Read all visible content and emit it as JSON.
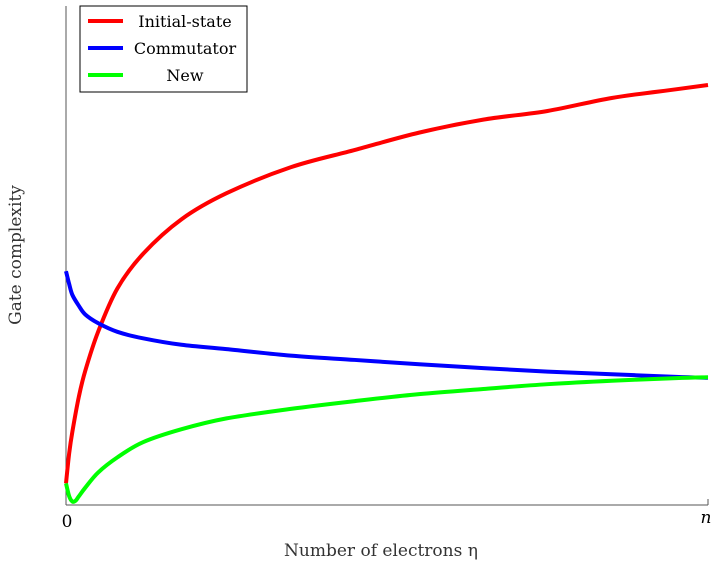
{
  "chart_data": {
    "type": "line",
    "xlabel": "Number of electrons η",
    "ylabel": "Gate complexity",
    "x_ticks": [
      "0",
      "n"
    ],
    "xlim": [
      0,
      1
    ],
    "ylim": [
      0,
      1
    ],
    "grid": false,
    "legend": {
      "position": "top-left"
    },
    "series": [
      {
        "name": "Initial-state",
        "color": "#ff0000",
        "x": [
          0.0,
          0.005,
          0.01,
          0.02,
          0.03,
          0.05,
          0.08,
          0.12,
          0.18,
          0.25,
          0.35,
          0.45,
          0.55,
          0.65,
          0.75,
          0.85,
          0.95,
          1.0
        ],
        "y": [
          0.05,
          0.12,
          0.17,
          0.25,
          0.31,
          0.4,
          0.5,
          0.58,
          0.66,
          0.72,
          0.78,
          0.82,
          0.86,
          0.89,
          0.91,
          0.94,
          0.96,
          0.97
        ]
      },
      {
        "name": "Commutator",
        "color": "#0000ff",
        "x": [
          0.0,
          0.005,
          0.01,
          0.02,
          0.03,
          0.05,
          0.08,
          0.12,
          0.18,
          0.25,
          0.35,
          0.45,
          0.55,
          0.65,
          0.75,
          0.85,
          0.95,
          1.0
        ],
        "y": [
          0.54,
          0.51,
          0.485,
          0.46,
          0.44,
          0.42,
          0.4,
          0.385,
          0.37,
          0.36,
          0.345,
          0.335,
          0.325,
          0.316,
          0.308,
          0.302,
          0.296,
          0.294
        ]
      },
      {
        "name": "New",
        "color": "#00ff00",
        "x": [
          0.0,
          0.005,
          0.01,
          0.015,
          0.02,
          0.03,
          0.05,
          0.08,
          0.12,
          0.18,
          0.25,
          0.35,
          0.45,
          0.55,
          0.65,
          0.75,
          0.85,
          0.95,
          1.0
        ],
        "y": [
          0.05,
          0.02,
          0.008,
          0.01,
          0.02,
          0.04,
          0.075,
          0.11,
          0.145,
          0.175,
          0.2,
          0.222,
          0.24,
          0.256,
          0.268,
          0.279,
          0.287,
          0.293,
          0.295
        ]
      }
    ]
  }
}
